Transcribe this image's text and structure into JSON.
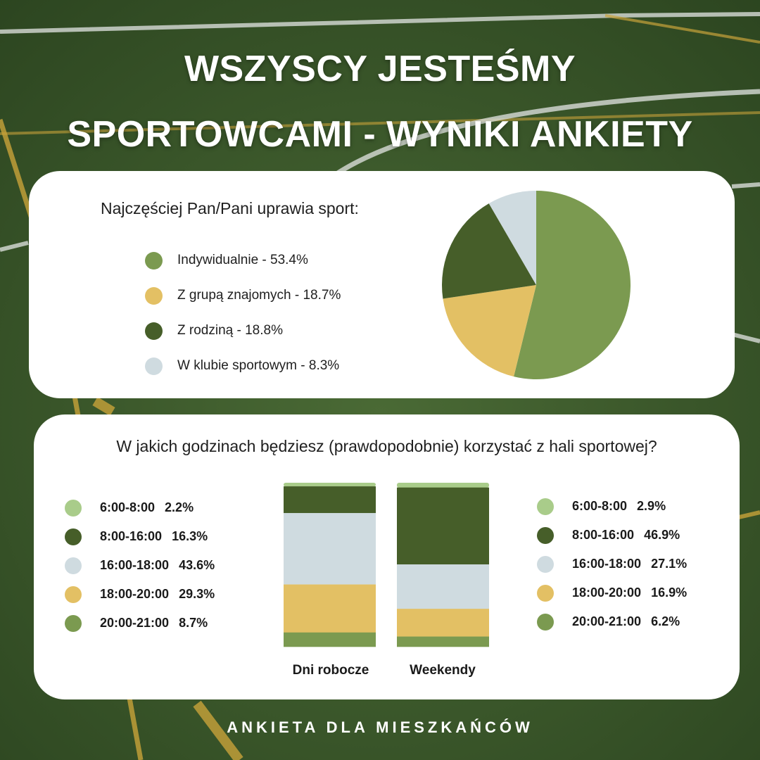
{
  "title": {
    "line1": "WSZYSCY JESTEŚMY",
    "line2": "SPORTOWCAMI - WYNIKI ANKIETY"
  },
  "footer": "ANKIETA DLA MIESZKAŃCÓW",
  "colors": {
    "light_green": "#a9cc8a",
    "mid_green": "#7b9a50",
    "dark_green": "#465e29",
    "yellow": "#e3c064",
    "light_blue": "#cfdbe0",
    "grass": "#3b5a2a"
  },
  "chart_data": [
    {
      "type": "pie",
      "title": "Najczęściej Pan/Pani uprawia sport:",
      "slices": [
        {
          "label": "Indywidualnie - 53.4%",
          "value": 53.4,
          "color": "#7b9a50"
        },
        {
          "label": "Z grupą znajomych - 18.7%",
          "value": 18.7,
          "color": "#e3c064"
        },
        {
          "label": "Z rodziną - 18.8%",
          "value": 18.8,
          "color": "#465e29"
        },
        {
          "label": "W klubie sportowym - 8.3%",
          "value": 8.3,
          "color": "#cfdbe0"
        }
      ]
    },
    {
      "type": "bar",
      "stacked": true,
      "title": "W jakich godzinach będziesz (prawdopodobnie) korzystać z hali sportowej?",
      "categories": [
        "Dni robocze",
        "Weekendy"
      ],
      "series": [
        {
          "name": "6:00-8:00",
          "values": [
            2.2,
            2.9
          ],
          "labels": [
            "2.2%",
            "2.9%"
          ],
          "color": "#a9cc8a"
        },
        {
          "name": "8:00-16:00",
          "values": [
            16.3,
            46.9
          ],
          "labels": [
            "16.3%",
            "46.9%"
          ],
          "color": "#465e29"
        },
        {
          "name": "16:00-18:00",
          "values": [
            43.6,
            27.1
          ],
          "labels": [
            "43.6%",
            "27.1%"
          ],
          "color": "#cfdbe0"
        },
        {
          "name": "18:00-20:00",
          "values": [
            29.3,
            16.9
          ],
          "labels": [
            "29.3%",
            "16.9%"
          ],
          "color": "#e3c064"
        },
        {
          "name": "20:00-21:00",
          "values": [
            8.7,
            6.2
          ],
          "labels": [
            "8.7%",
            "6.2%"
          ],
          "color": "#7b9a50"
        }
      ]
    }
  ]
}
